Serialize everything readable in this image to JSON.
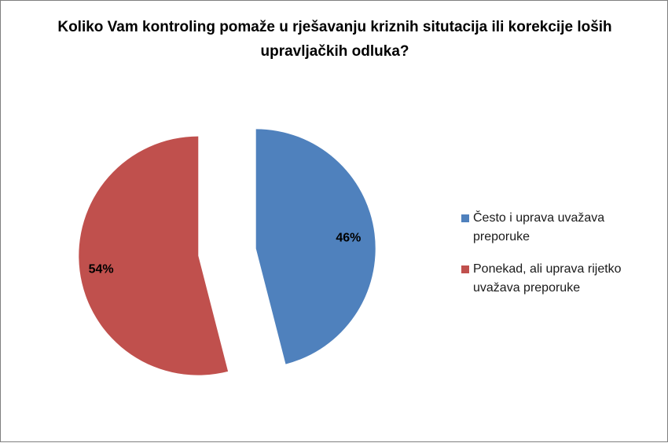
{
  "chart_data": {
    "type": "pie",
    "title": "Koliko Vam kontroling pomaže u rješavanju kriznih situtacija ili korekcije loših upravljačkih odluka?",
    "categories": [
      "Često i uprava uvažava preporuke",
      "Ponekad, ali uprava rijetko uvažava preporuke"
    ],
    "values": [
      46,
      54
    ],
    "data_labels": [
      "46%",
      "54%"
    ],
    "colors": [
      "#4f81bd",
      "#c0504d"
    ],
    "legend_position": "right",
    "exploded": true
  }
}
